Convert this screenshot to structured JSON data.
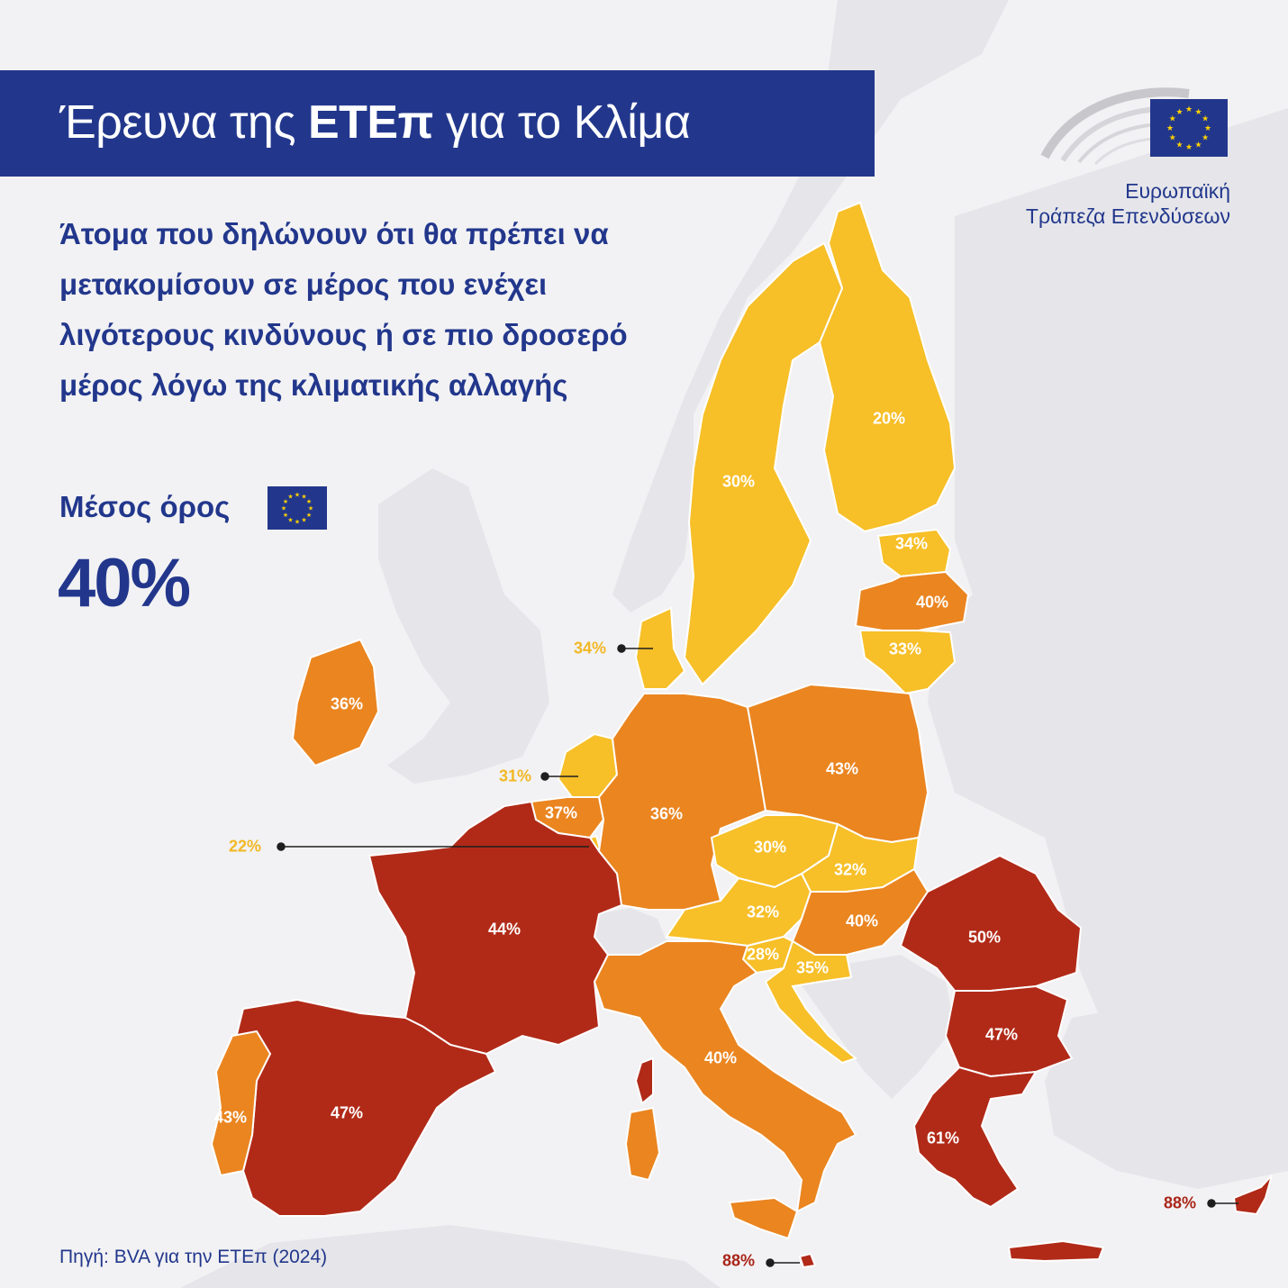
{
  "title": {
    "prefix": "Έρευνα της ",
    "emphasis": "ΕΤΕπ",
    "suffix": " για το Κλίμα"
  },
  "subtitle": "Άτομα που δηλώνουν ότι θα πρέπει να μετακομίσουν σε μέρος που ενέχει λιγότερους κινδύνους ή σε πιο δροσερό μέρος λόγω της κλιματικής αλλαγής",
  "average": {
    "label": "Μέσος όρος",
    "value": "40%",
    "flag_icon": "eu-flag-icon"
  },
  "logo": {
    "line1": "Ευρωπαϊκή",
    "line2": "Τράπεζα Επενδύσεων",
    "icon": "eib-logo-icon"
  },
  "source": "Πηγή: BVA για την ΕΤΕπ (2024)",
  "colors": {
    "low": "#f7bf28",
    "mid": "#ea8520",
    "high": "#b12a18",
    "eu_blue": "#22378c",
    "background_land": "#e6e6ea",
    "sea": "#f2f2f4"
  },
  "regions": [
    {
      "id": "finland",
      "value": "20%",
      "band": "low"
    },
    {
      "id": "sweden",
      "value": "30%",
      "band": "low"
    },
    {
      "id": "estonia",
      "value": "34%",
      "band": "low"
    },
    {
      "id": "latvia",
      "value": "40%",
      "band": "mid"
    },
    {
      "id": "lithuania",
      "value": "33%",
      "band": "low"
    },
    {
      "id": "denmark",
      "value": "34%",
      "band": "low"
    },
    {
      "id": "ireland",
      "value": "36%",
      "band": "mid"
    },
    {
      "id": "netherlands",
      "value": "31%",
      "band": "low"
    },
    {
      "id": "belgium",
      "value": "37%",
      "band": "mid"
    },
    {
      "id": "luxembourg",
      "value": "22%",
      "band": "low"
    },
    {
      "id": "germany",
      "value": "36%",
      "band": "mid"
    },
    {
      "id": "poland",
      "value": "43%",
      "band": "mid"
    },
    {
      "id": "czechia",
      "value": "30%",
      "band": "low"
    },
    {
      "id": "slovakia",
      "value": "32%",
      "band": "low"
    },
    {
      "id": "austria",
      "value": "32%",
      "band": "low"
    },
    {
      "id": "hungary",
      "value": "40%",
      "band": "mid"
    },
    {
      "id": "slovenia",
      "value": "28%",
      "band": "low"
    },
    {
      "id": "croatia",
      "value": "35%",
      "band": "low"
    },
    {
      "id": "romania",
      "value": "50%",
      "band": "high"
    },
    {
      "id": "bulgaria",
      "value": "47%",
      "band": "high"
    },
    {
      "id": "greece",
      "value": "61%",
      "band": "high"
    },
    {
      "id": "cyprus",
      "value": "88%",
      "band": "high"
    },
    {
      "id": "malta",
      "value": "88%",
      "band": "high"
    },
    {
      "id": "france",
      "value": "44%",
      "band": "high"
    },
    {
      "id": "spain",
      "value": "47%",
      "band": "high"
    },
    {
      "id": "portugal",
      "value": "43%",
      "band": "mid"
    },
    {
      "id": "italy",
      "value": "40%",
      "band": "mid"
    }
  ]
}
